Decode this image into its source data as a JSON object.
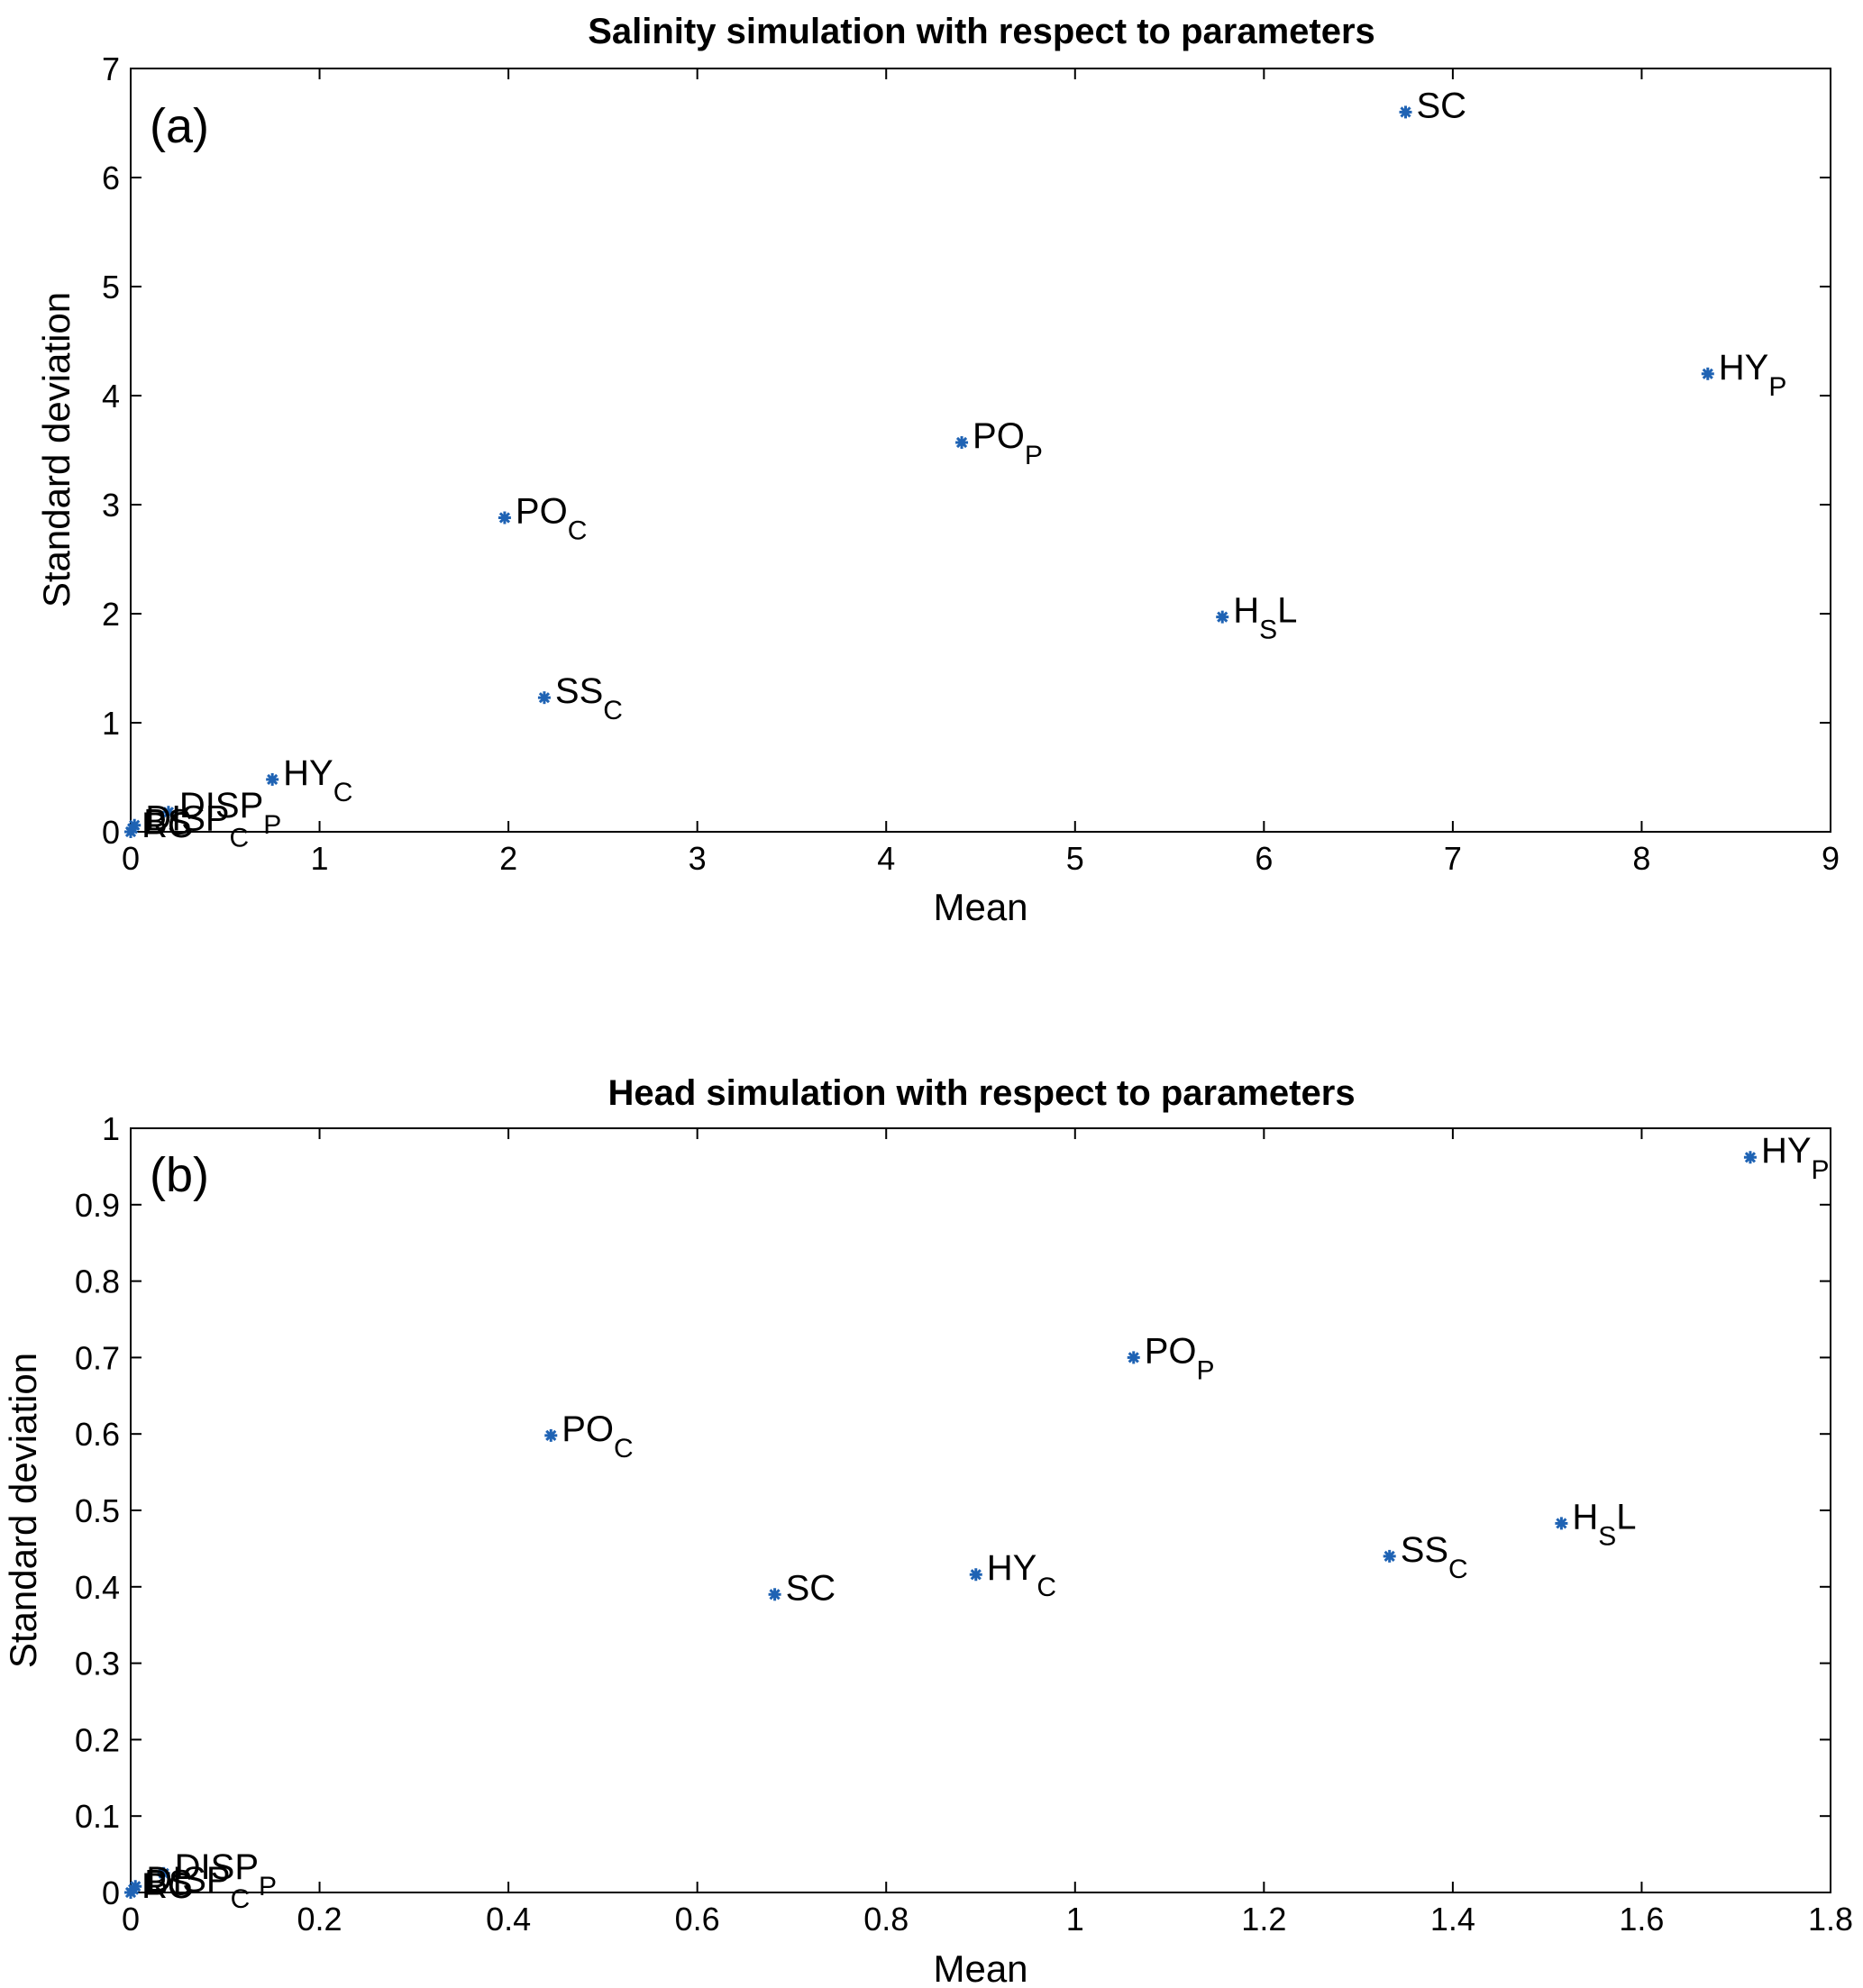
{
  "chart_data": [
    {
      "type": "scatter",
      "title": "Salinity simulation with respect to parameters",
      "panel_label": "(a)",
      "xlabel": "Mean",
      "ylabel": "Standard deviation",
      "xlim": [
        0,
        9
      ],
      "ylim": [
        0,
        7
      ],
      "xticks": [
        "0",
        "1",
        "2",
        "3",
        "4",
        "5",
        "6",
        "7",
        "8",
        "9"
      ],
      "yticks": [
        "0",
        "1",
        "2",
        "3",
        "4",
        "5",
        "6",
        "7"
      ],
      "grid": false,
      "marker_color": "#1f63b4",
      "points": [
        {
          "label": "SC",
          "sub": "",
          "suffix": "",
          "x": 6.75,
          "y": 6.6
        },
        {
          "label": "HY",
          "sub": "P",
          "suffix": "",
          "x": 8.35,
          "y": 4.2
        },
        {
          "label": "PO",
          "sub": "P",
          "suffix": "",
          "x": 4.4,
          "y": 3.57
        },
        {
          "label": "PO",
          "sub": "C",
          "suffix": "",
          "x": 1.98,
          "y": 2.88
        },
        {
          "label": "H",
          "sub": "S",
          "suffix": "L",
          "x": 5.78,
          "y": 1.97
        },
        {
          "label": "SS",
          "sub": "C",
          "suffix": "",
          "x": 2.19,
          "y": 1.23
        },
        {
          "label": "HY",
          "sub": "C",
          "suffix": "",
          "x": 0.75,
          "y": 0.48
        },
        {
          "label": "DISP",
          "sub": "P",
          "suffix": "",
          "x": 0.2,
          "y": 0.18
        },
        {
          "label": "DISP",
          "sub": "C",
          "suffix": "",
          "x": 0.02,
          "y": 0.06
        },
        {
          "label": "BS",
          "sub": "",
          "suffix": "",
          "x": 0.01,
          "y": 0.03
        },
        {
          "label": "RC",
          "sub": "",
          "suffix": "",
          "x": 0.0,
          "y": 0.0
        }
      ]
    },
    {
      "type": "scatter",
      "title": "Head simulation with respect to parameters",
      "panel_label": "(b)",
      "xlabel": "Mean",
      "ylabel": "Standard deviation",
      "xlim": [
        0,
        1.8
      ],
      "ylim": [
        0,
        1
      ],
      "xticks": [
        "0",
        "0.2",
        "0.4",
        "0.6",
        "0.8",
        "1",
        "1.2",
        "1.4",
        "1.6",
        "1.8"
      ],
      "yticks": [
        "0",
        "0.1",
        "0.2",
        "0.3",
        "0.4",
        "0.5",
        "0.6",
        "0.7",
        "0.8",
        "0.9",
        "1"
      ],
      "grid": false,
      "marker_color": "#1f63b4",
      "points": [
        {
          "label": "HY",
          "sub": "P",
          "suffix": "",
          "x": 1.715,
          "y": 0.962
        },
        {
          "label": "PO",
          "sub": "P",
          "suffix": "",
          "x": 1.062,
          "y": 0.7
        },
        {
          "label": "PO",
          "sub": "C",
          "suffix": "",
          "x": 0.445,
          "y": 0.598
        },
        {
          "label": "H",
          "sub": "S",
          "suffix": "L",
          "x": 1.515,
          "y": 0.483
        },
        {
          "label": "SS",
          "sub": "C",
          "suffix": "",
          "x": 1.333,
          "y": 0.44
        },
        {
          "label": "HY",
          "sub": "C",
          "suffix": "",
          "x": 0.895,
          "y": 0.416
        },
        {
          "label": "SC",
          "sub": "",
          "suffix": "",
          "x": 0.682,
          "y": 0.39
        },
        {
          "label": "DISP",
          "sub": "P",
          "suffix": "",
          "x": 0.035,
          "y": 0.025
        },
        {
          "label": "DISP",
          "sub": "C",
          "suffix": "",
          "x": 0.005,
          "y": 0.008
        },
        {
          "label": "BS",
          "sub": "",
          "suffix": "",
          "x": 0.003,
          "y": 0.004
        },
        {
          "label": "RC",
          "sub": "",
          "suffix": "",
          "x": 0.0,
          "y": 0.0
        }
      ]
    }
  ]
}
